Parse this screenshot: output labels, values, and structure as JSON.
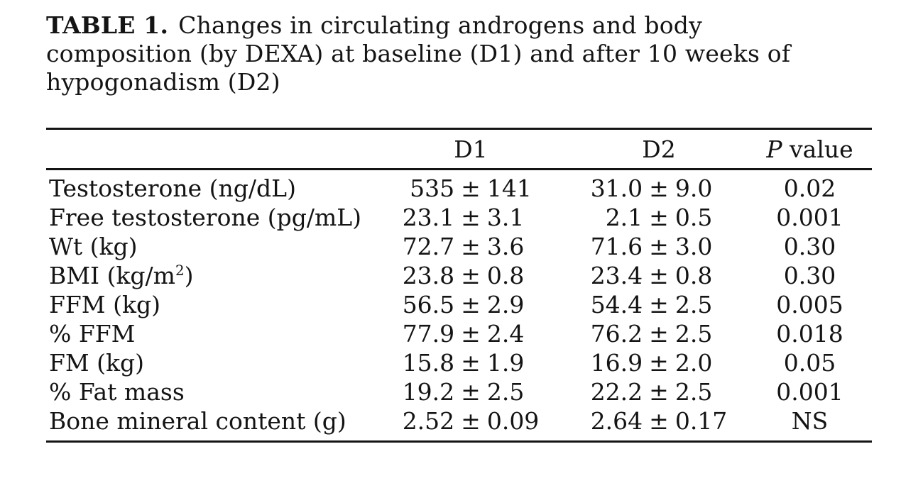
{
  "title": {
    "label": "TABLE 1.",
    "line1": "Changes in circulating androgens and body",
    "line2": "composition (by DEXA) at baseline (D1) and after 10 weeks of",
    "line3": "hypogonadism (D2)"
  },
  "table": {
    "plus_minus": "±",
    "header": {
      "d1": "D1",
      "d2": "D2",
      "p_italic": "P",
      "p_word": "value"
    },
    "rows": [
      {
        "label": "Testosterone (ng/dL)",
        "d1_mean": "535",
        "d1_sd": "141",
        "d2_mean": "31.0",
        "d2_sd": "9.0",
        "p": "0.02"
      },
      {
        "label": "Free testosterone (pg/mL)",
        "d1_mean": "23.1",
        "d1_sd": "3.1",
        "d2_mean": "2.1",
        "d2_sd": "0.5",
        "p": "0.001"
      },
      {
        "label": "Wt (kg)",
        "d1_mean": "72.7",
        "d1_sd": "3.6",
        "d2_mean": "71.6",
        "d2_sd": "3.0",
        "p": "0.30"
      },
      {
        "label_pre": "BMI (kg/m",
        "label_sup": "2",
        "label_post": ")",
        "d1_mean": "23.8",
        "d1_sd": "0.8",
        "d2_mean": "23.4",
        "d2_sd": "0.8",
        "p": "0.30"
      },
      {
        "label": "FFM (kg)",
        "d1_mean": "56.5",
        "d1_sd": "2.9",
        "d2_mean": "54.4",
        "d2_sd": "2.5",
        "p": "0.005"
      },
      {
        "label": "% FFM",
        "d1_mean": "77.9",
        "d1_sd": "2.4",
        "d2_mean": "76.2",
        "d2_sd": "2.5",
        "p": "0.018"
      },
      {
        "label": "FM (kg)",
        "d1_mean": "15.8",
        "d1_sd": "1.9",
        "d2_mean": "16.9",
        "d2_sd": "2.0",
        "p": "0.05"
      },
      {
        "label": "% Fat mass",
        "d1_mean": "19.2",
        "d1_sd": "2.5",
        "d2_mean": "22.2",
        "d2_sd": "2.5",
        "p": "0.001"
      },
      {
        "label": "Bone mineral content (g)",
        "d1_mean": "2.52",
        "d1_sd": "0.09",
        "d2_mean": "2.64",
        "d2_sd": "0.17",
        "p": "NS"
      }
    ]
  }
}
